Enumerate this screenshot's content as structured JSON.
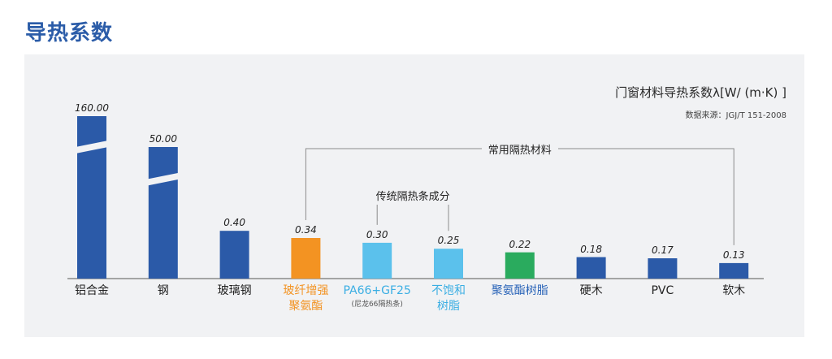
{
  "page_title": "导热系数",
  "chart_data": {
    "type": "bar",
    "title": "门窗材料导热系数λ[W/ (m·K) ]",
    "subtitle": "数据来源：JGJ/T 151-2008",
    "categories": [
      "铝合金",
      "钢",
      "玻璃钢",
      "玻纤增强聚氨酯",
      "PA66+GF25",
      "不饱和树脂",
      "聚氨酯树脂",
      "硬木",
      "PVC",
      "软木"
    ],
    "category_lines": [
      [
        "铝合金"
      ],
      [
        "钢"
      ],
      [
        "玻璃钢"
      ],
      [
        "玻纤增强",
        "聚氨酯"
      ],
      [
        "PA66+GF25"
      ],
      [
        "不饱和",
        "树脂"
      ],
      [
        "聚氨酯树脂"
      ],
      [
        "硬木"
      ],
      [
        "PVC"
      ],
      [
        "软木"
      ]
    ],
    "category_notes": [
      "",
      "",
      "",
      "",
      "(尼龙66隔热条)",
      "",
      "",
      "",
      "",
      ""
    ],
    "values": [
      160.0,
      50.0,
      0.4,
      0.34,
      0.3,
      0.25,
      0.22,
      0.18,
      0.17,
      0.13
    ],
    "value_labels": [
      "160.00",
      "50.00",
      "0.40",
      "0.34",
      "0.30",
      "0.25",
      "0.22",
      "0.18",
      "0.17",
      "0.13"
    ],
    "axis_break": [
      0.5,
      50
    ],
    "bar_colors": [
      "#2b5aa8",
      "#2b5aa8",
      "#2b5aa8",
      "#f39322",
      "#5bc1ec",
      "#5bc1ec",
      "#2aab5e",
      "#2b5aa8",
      "#2b5aa8",
      "#2b5aa8"
    ],
    "label_colors": [
      "#222222",
      "#222222",
      "#222222",
      "#f39322",
      "#3aaee3",
      "#3aaee3",
      "#2a64b8",
      "#222222",
      "#222222",
      "#222222"
    ],
    "groups": [
      {
        "label": "常用隔热材料",
        "members": [
          3,
          9
        ]
      },
      {
        "label": "传统隔热条成分",
        "members": [
          4,
          5
        ]
      }
    ],
    "legend": "none",
    "grid": false
  }
}
